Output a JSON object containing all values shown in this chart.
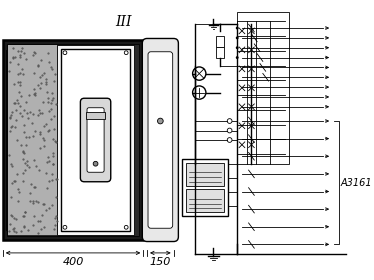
{
  "title_text": "III",
  "dim_label_400": "400",
  "dim_label_150": "150",
  "circuit_label": "A3161",
  "bg_color": "#ffffff",
  "lc": "#000000",
  "fig_width": 3.74,
  "fig_height": 2.8,
  "dpi": 100
}
